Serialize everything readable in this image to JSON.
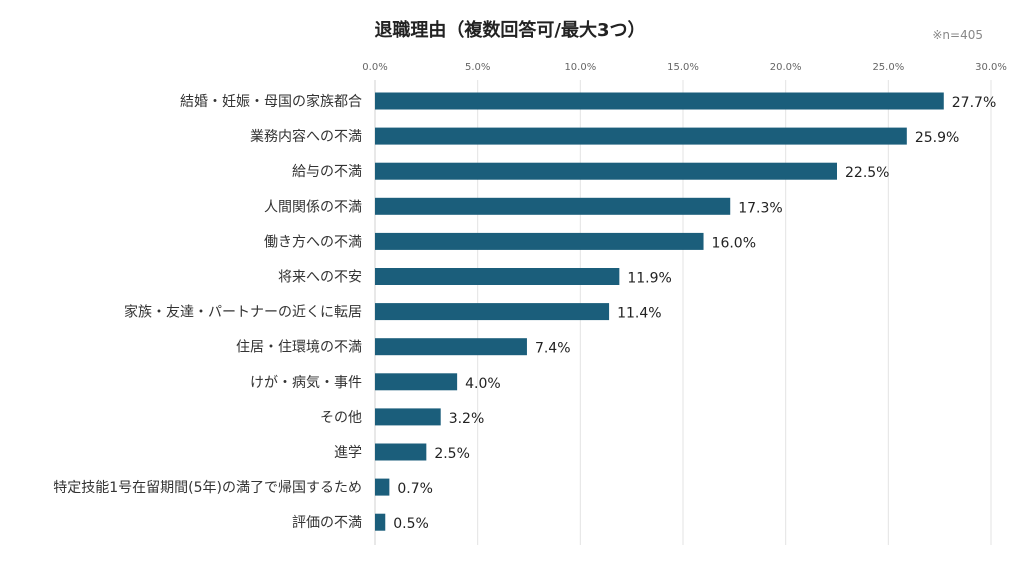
{
  "chart_data": {
    "type": "bar",
    "orientation": "horizontal",
    "title": "退職理由（複数回答可/最大3つ）",
    "note": "※n=405",
    "xlabel": "",
    "ylabel": "",
    "xlim": [
      0,
      30
    ],
    "ticks": [
      "0.0%",
      "5.0%",
      "10.0%",
      "15.0%",
      "20.0%",
      "25.0%",
      "30.0%"
    ],
    "tick_values": [
      0,
      5,
      10,
      15,
      20,
      25,
      30
    ],
    "grid": true,
    "bar_color": "#1b5e7b",
    "categories": [
      "結婚・妊娠・母国の家族都合",
      "業務内容への不満",
      "給与の不満",
      "人間関係の不満",
      "働き方への不満",
      "将来への不安",
      "家族・友達・パートナーの近くに転居",
      "住居・住環境の不満",
      "けが・病気・事件",
      "その他",
      "進学",
      "特定技能1号在留期間(5年)の満了で帰国するため",
      "評価の不満"
    ],
    "values": [
      27.7,
      25.9,
      22.5,
      17.3,
      16.0,
      11.9,
      11.4,
      7.4,
      4.0,
      3.2,
      2.5,
      0.7,
      0.5
    ],
    "value_labels": [
      "27.7%",
      "25.9%",
      "22.5%",
      "17.3%",
      "16.0%",
      "11.9%",
      "11.4%",
      "7.4%",
      "4.0%",
      "3.2%",
      "2.5%",
      "0.7%",
      "0.5%"
    ]
  }
}
